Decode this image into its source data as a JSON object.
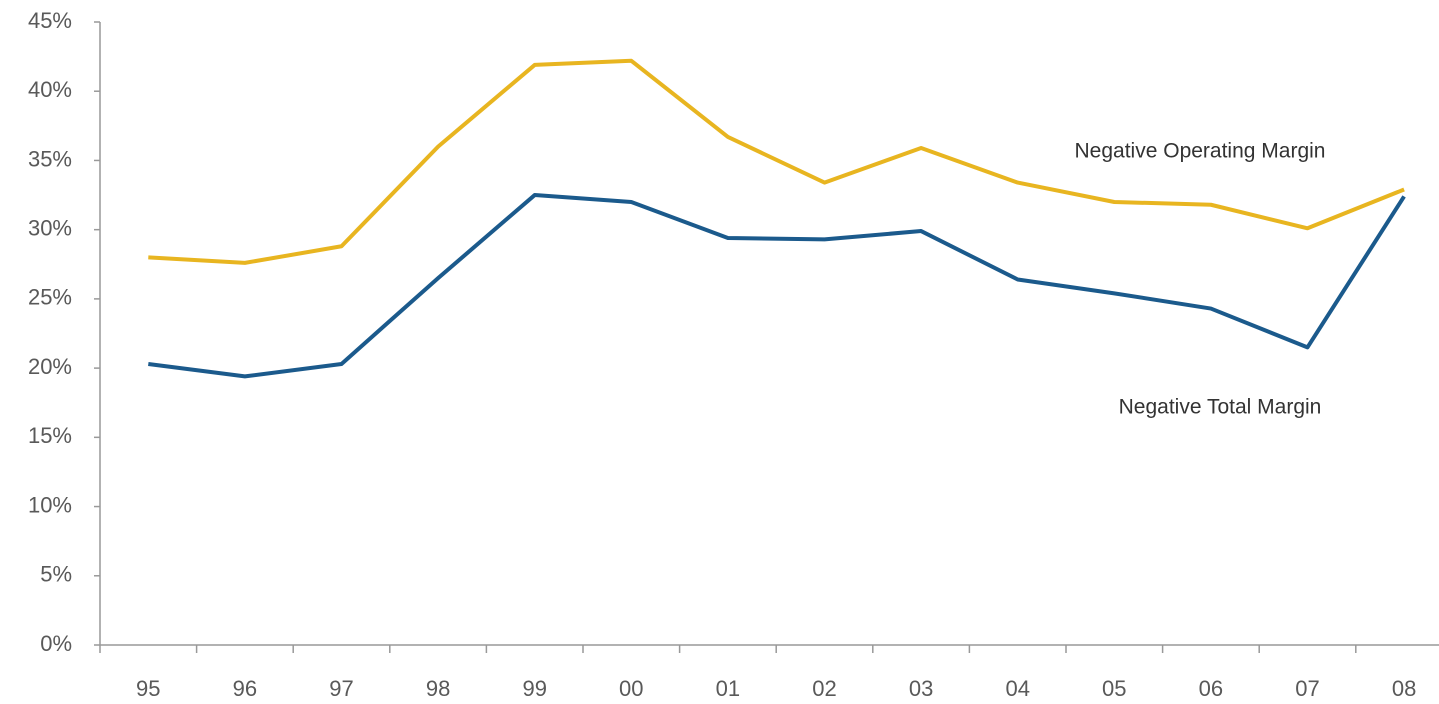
{
  "chart_data": {
    "type": "line",
    "categories": [
      "95",
      "96",
      "97",
      "98",
      "99",
      "00",
      "01",
      "02",
      "03",
      "04",
      "05",
      "06",
      "07",
      "08"
    ],
    "series": [
      {
        "name": "Negative Operating Margin",
        "color": "#e8b520",
        "values": [
          28.0,
          27.6,
          28.8,
          36.0,
          41.9,
          42.2,
          36.7,
          33.4,
          35.9,
          33.4,
          32.0,
          31.8,
          30.1,
          32.9
        ]
      },
      {
        "name": "Negative Total Margin",
        "color": "#1b5a8c",
        "values": [
          20.3,
          19.4,
          20.3,
          26.5,
          32.5,
          32.0,
          29.4,
          29.3,
          29.9,
          26.4,
          25.4,
          24.3,
          21.5,
          32.4
        ]
      }
    ],
    "ylim": [
      0,
      45
    ],
    "yticks": [
      {
        "value": 0,
        "label": "0%"
      },
      {
        "value": 5,
        "label": "5%"
      },
      {
        "value": 10,
        "label": "10%"
      },
      {
        "value": 15,
        "label": "15%"
      },
      {
        "value": 20,
        "label": "20%"
      },
      {
        "value": 25,
        "label": "25%"
      },
      {
        "value": 30,
        "label": "30%"
      },
      {
        "value": 35,
        "label": "35%"
      },
      {
        "value": 40,
        "label": "40%"
      },
      {
        "value": 45,
        "label": "45%"
      }
    ],
    "grid": false
  }
}
